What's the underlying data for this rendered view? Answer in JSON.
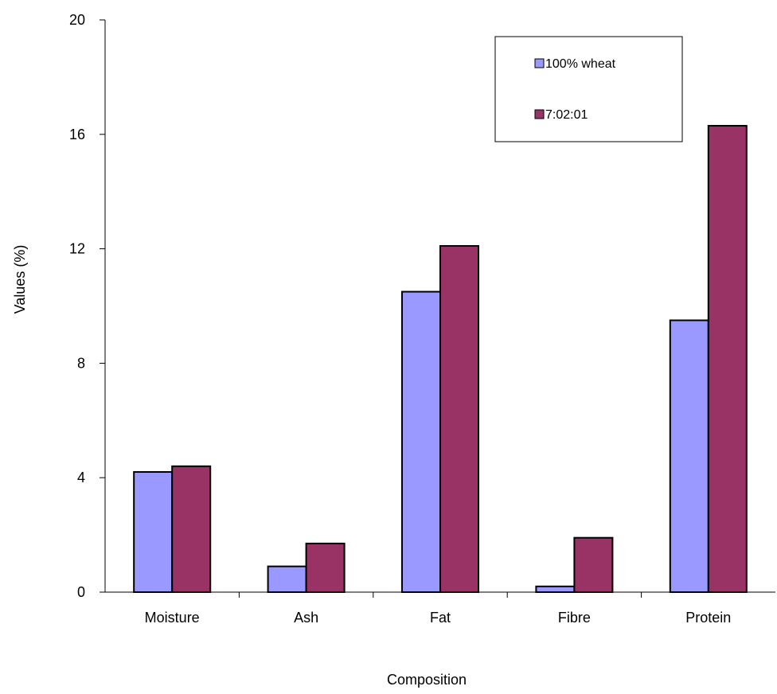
{
  "chart_data": {
    "type": "bar",
    "title": "",
    "xlabel": "Composition",
    "ylabel": "Values (%)",
    "categories": [
      "Moisture",
      "Ash",
      "Fat",
      "Fibre",
      "Protein"
    ],
    "ylim": [
      0,
      20
    ],
    "yticks": [
      0,
      4,
      8,
      12,
      16,
      20
    ],
    "grid": false,
    "legend_position": "top-right",
    "series": [
      {
        "name": "100% wheat",
        "color": "#9999ff",
        "values": [
          4.2,
          0.9,
          10.5,
          0.2,
          9.5
        ]
      },
      {
        "name": "7:02:01",
        "color": "#993366",
        "values": [
          4.4,
          1.7,
          12.1,
          1.9,
          16.3
        ]
      }
    ]
  }
}
